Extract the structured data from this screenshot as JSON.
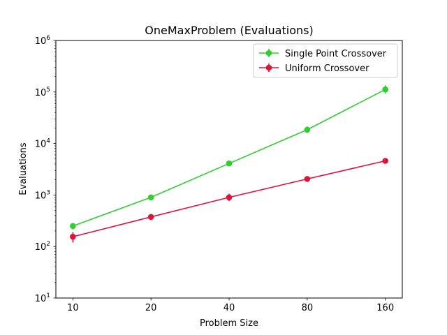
{
  "chart_data": {
    "type": "line",
    "title": "OneMaxProblem (Evaluations)",
    "xlabel": "Problem Size",
    "ylabel": "Evaluations",
    "x_scale": "log2",
    "y_scale": "log10",
    "x": [
      10,
      20,
      40,
      80,
      160
    ],
    "x_tick_labels": [
      "10",
      "20",
      "40",
      "80",
      "160"
    ],
    "xlim": [
      8.6,
      186
    ],
    "ylim": [
      10,
      1000000
    ],
    "y_ticks": [
      {
        "value": 10,
        "base": "10",
        "exp": "1"
      },
      {
        "value": 100,
        "base": "10",
        "exp": "2"
      },
      {
        "value": 1000,
        "base": "10",
        "exp": "3"
      },
      {
        "value": 10000,
        "base": "10",
        "exp": "4"
      },
      {
        "value": 100000,
        "base": "10",
        "exp": "5"
      },
      {
        "value": 1000000,
        "base": "10",
        "exp": "6"
      }
    ],
    "grid": false,
    "legend_position": "top-right",
    "series": [
      {
        "name": "Single Point Crossover",
        "color": "#32cd32",
        "values": [
          250,
          900,
          4100,
          18500,
          112000
        ],
        "err_low": [
          215,
          830,
          3800,
          16000,
          93000
        ],
        "err_high": [
          285,
          970,
          4400,
          21500,
          135000
        ]
      },
      {
        "name": "Uniform Crossover",
        "color": "#dc143c",
        "values": [
          155,
          375,
          900,
          2050,
          4600
        ],
        "err_low": [
          120,
          340,
          760,
          1950,
          4400
        ],
        "err_high": [
          190,
          410,
          1060,
          2150,
          4800
        ]
      }
    ]
  }
}
